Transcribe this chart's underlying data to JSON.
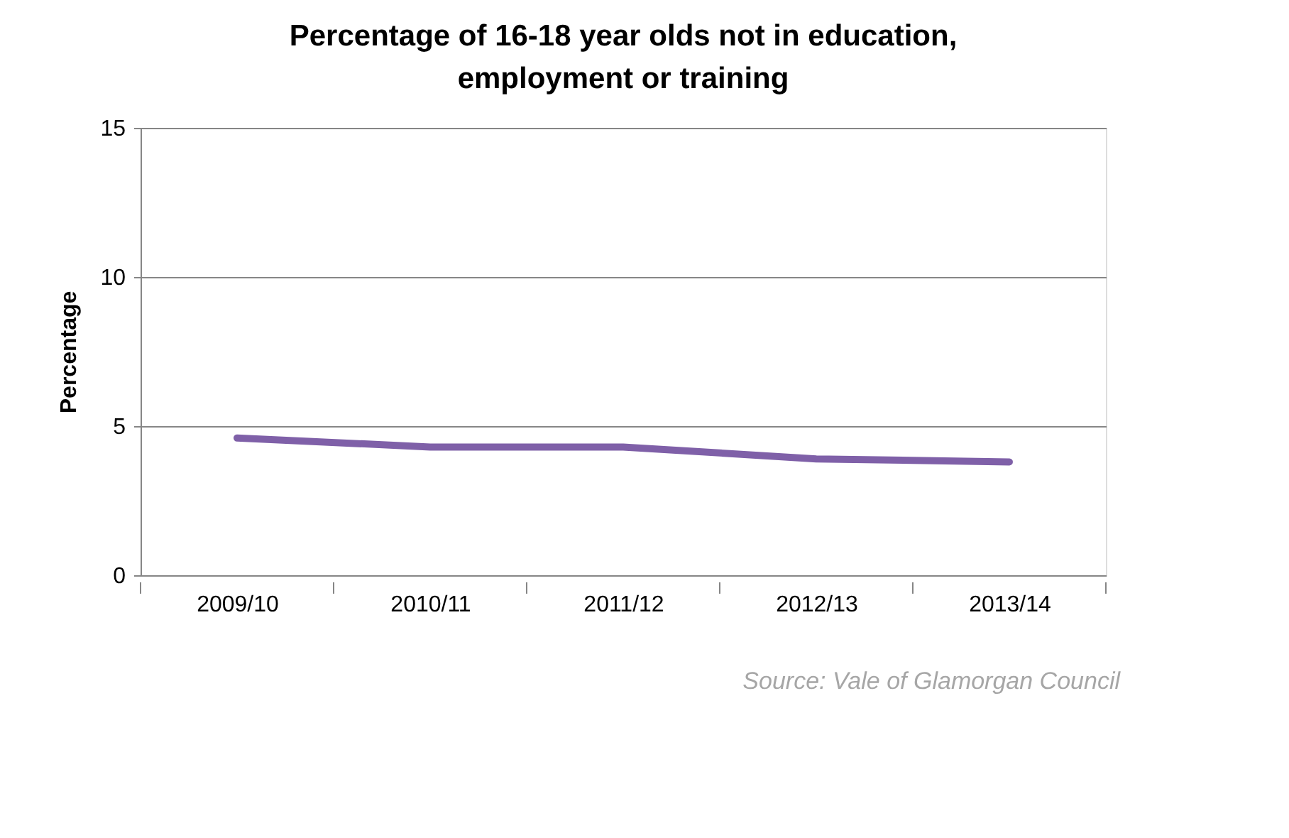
{
  "chart_data": {
    "type": "line",
    "title": "Percentage of 16-18 year olds not in education, employment or training",
    "ylabel": "Percentage",
    "categories": [
      "2009/10",
      "2010/11",
      "2011/12",
      "2012/13",
      "2013/14"
    ],
    "series": [
      {
        "color": "#7f60a8",
        "values": [
          4.6,
          4.3,
          4.3,
          3.9,
          3.8
        ]
      }
    ],
    "ylim": [
      0,
      15
    ],
    "yticks": [
      0,
      5,
      10,
      15
    ],
    "grid": "y",
    "marker": "none",
    "line_style": "solid",
    "annotations": [
      "Source: Vale of Glamorgan Council"
    ]
  }
}
